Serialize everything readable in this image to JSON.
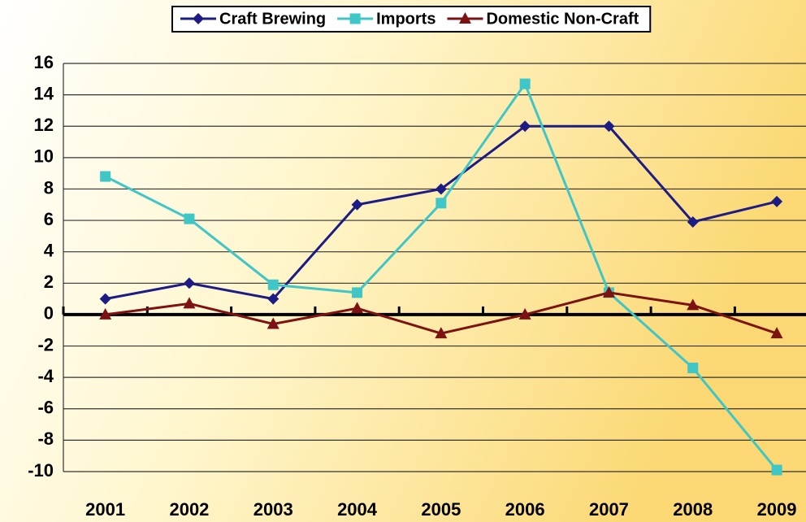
{
  "chart_data": {
    "type": "line",
    "categories": [
      "2001",
      "2002",
      "2003",
      "2004",
      "2005",
      "2006",
      "2007",
      "2008",
      "2009"
    ],
    "series": [
      {
        "name": "Craft Brewing",
        "color": "#1c1c84",
        "marker": "diamond",
        "values": [
          1,
          2,
          1,
          7,
          8,
          12,
          12,
          5.9,
          7.2
        ]
      },
      {
        "name": "Imports",
        "color": "#3fc6c6",
        "marker": "square",
        "values": [
          8.8,
          6.1,
          1.9,
          1.4,
          7.1,
          14.7,
          1.4,
          -3.4,
          -9.9
        ]
      },
      {
        "name": "Domestic Non-Craft",
        "color": "#7c1212",
        "marker": "triangle",
        "values": [
          0,
          0.7,
          -0.6,
          0.4,
          -1.2,
          0,
          1.4,
          0.6,
          -1.2
        ]
      }
    ],
    "ylim": [
      -10,
      16
    ],
    "yticks": [
      -10,
      -8,
      -6,
      -4,
      -2,
      0,
      2,
      4,
      6,
      8,
      10,
      12,
      14,
      16
    ],
    "grid": true,
    "legend": "top"
  }
}
